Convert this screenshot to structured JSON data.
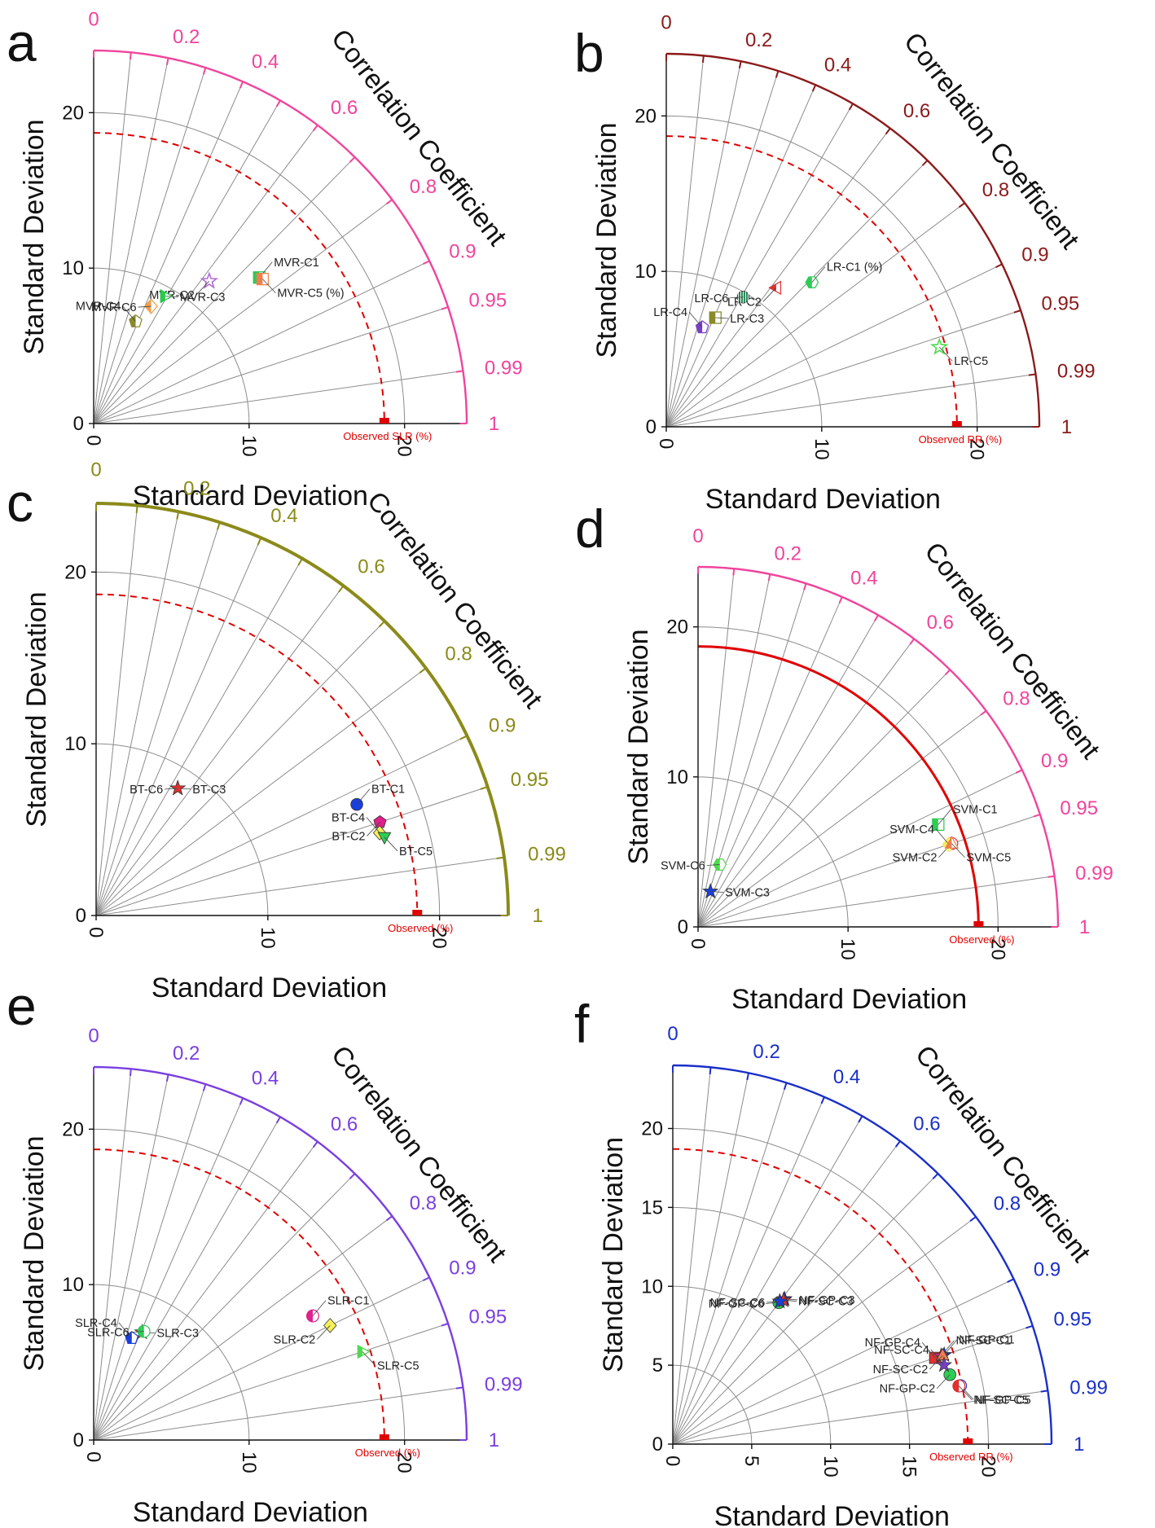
{
  "common": {
    "xlabel": "Standard Deviation",
    "ylabel": "Standard Deviation",
    "corr_label": "Correlation Coefficient",
    "sd_ticks": [
      "0",
      "10",
      "20"
    ],
    "corr_ticks": [
      "0",
      "0.2",
      "0.4",
      "0.6",
      "0.8",
      "0.9",
      "0.95",
      "0.99",
      "1"
    ],
    "observed_color": "#e00000"
  },
  "chart_data": [
    {
      "panel": "a",
      "type": "scatter",
      "chart_kind": "taylor-diagram",
      "xlabel": "Standard Deviation",
      "ylabel": "Standard Deviation",
      "corr_label": "Correlation Coefficient",
      "sd_range": [
        0,
        24
      ],
      "sd_ticks": [
        0,
        10,
        20
      ],
      "corr_ticks": [
        0,
        0.2,
        0.4,
        0.6,
        0.8,
        0.9,
        0.95,
        0.99,
        1
      ],
      "accent_color": "#f0449c",
      "observed": {
        "label": "Observed SLR (%)",
        "sd": 18.7
      },
      "points": [
        {
          "name": "MVR-C1",
          "sd": 14.2,
          "corr": 0.75,
          "color": "#2ecc55",
          "shape": "square-half"
        },
        {
          "name": "MVR-C2",
          "sd": 11.8,
          "corr": 0.63,
          "color": "#b36bd6",
          "shape": "star-open"
        },
        {
          "name": "MVR-C3",
          "sd": 9.4,
          "corr": 0.49,
          "color": "#27cc4b",
          "shape": "triangle-right-half"
        },
        {
          "name": "MVR-C4",
          "sd": 7.1,
          "corr": 0.38,
          "color": "#8a8a2a",
          "shape": "pentagon-half"
        },
        {
          "name": "MVR-C5 (%)",
          "sd": 14.3,
          "corr": 0.76,
          "color": "#f07f50",
          "shape": "square-half"
        },
        {
          "name": "MVR-C6",
          "sd": 8.4,
          "corr": 0.44,
          "color": "#f0a050",
          "shape": "diamond-half"
        }
      ]
    },
    {
      "panel": "b",
      "type": "scatter",
      "chart_kind": "taylor-diagram",
      "xlabel": "Standard Deviation",
      "ylabel": "Standard Deviation",
      "corr_label": "Correlation Coefficient",
      "sd_range": [
        0,
        24
      ],
      "sd_ticks": [
        0,
        10,
        20
      ],
      "corr_ticks": [
        0,
        0.2,
        0.4,
        0.6,
        0.8,
        0.9,
        0.95,
        0.99,
        1
      ],
      "accent_color": "#8b1a1a",
      "observed": {
        "label": "Observed RR (%)",
        "sd": 18.7
      },
      "points": [
        {
          "name": "LR-C1 (%)",
          "sd": 13.2,
          "corr": 0.71,
          "color": "#2ecc55",
          "shape": "hexagon-half"
        },
        {
          "name": "LR-C2",
          "sd": 11.4,
          "corr": 0.62,
          "color": "#e03030",
          "shape": "triangle-left-half"
        },
        {
          "name": "LR-C3",
          "sd": 7.7,
          "corr": 0.41,
          "color": "#8a8a2a",
          "shape": "square-half"
        },
        {
          "name": "LR-C4",
          "sd": 6.8,
          "corr": 0.34,
          "color": "#7a3fc8",
          "shape": "pentagon-half"
        },
        {
          "name": "LR-C5",
          "sd": 18.3,
          "corr": 0.96,
          "color": "#4ddb4d",
          "shape": "star-open"
        },
        {
          "name": "LR-C6",
          "sd": 9.7,
          "corr": 0.51,
          "color": "#2b8a5a",
          "shape": "circle-striped"
        }
      ]
    },
    {
      "panel": "c",
      "type": "scatter",
      "chart_kind": "taylor-diagram",
      "xlabel": "Standard Deviation",
      "ylabel": "Standard Deviation",
      "corr_label": "Correlation Coefficient",
      "sd_range": [
        0,
        24
      ],
      "sd_ticks": [
        0,
        10,
        20
      ],
      "corr_ticks": [
        0,
        0.2,
        0.4,
        0.6,
        0.8,
        0.9,
        0.95,
        0.99,
        1
      ],
      "accent_color": "#8b8a1a",
      "observed": {
        "label": "Observed (%)",
        "sd": 18.7
      },
      "points": [
        {
          "name": "BT-C1",
          "sd": 16.5,
          "corr": 0.92,
          "color": "#1a3fe0",
          "shape": "circle"
        },
        {
          "name": "BT-C2",
          "sd": 17.4,
          "corr": 0.95,
          "color": "#e0208c",
          "shape": "pentagon"
        },
        {
          "name": "BT-C3",
          "sd": 8.8,
          "corr": 0.54,
          "color": "#111111",
          "shape": "star"
        },
        {
          "name": "BT-C4",
          "sd": 17.2,
          "corr": 0.96,
          "color": "#f5ef5a",
          "shape": "diamond"
        },
        {
          "name": "BT-C5",
          "sd": 17.4,
          "corr": 0.965,
          "color": "#2ecc55",
          "shape": "triangle-down"
        },
        {
          "name": "BT-C6",
          "sd": 8.8,
          "corr": 0.54,
          "color": "#e03030",
          "shape": "star"
        }
      ]
    },
    {
      "panel": "d",
      "type": "scatter",
      "chart_kind": "taylor-diagram",
      "xlabel": "Standard Deviation",
      "ylabel": "Standard Deviation",
      "corr_label": "Correlation Coefficient",
      "sd_range": [
        0,
        24
      ],
      "sd_ticks": [
        0,
        10,
        20
      ],
      "corr_ticks": [
        0,
        0.2,
        0.4,
        0.6,
        0.8,
        0.9,
        0.95,
        0.99,
        1
      ],
      "accent_color": "#f0449c",
      "observed": {
        "label": "Observed (%)",
        "sd": 18.7
      },
      "points": [
        {
          "name": "SVM-C1",
          "sd": 17.4,
          "corr": 0.92,
          "color": "#2ecc55",
          "shape": "square-half"
        },
        {
          "name": "SVM-C2",
          "sd": 17.8,
          "corr": 0.95,
          "color": "#e03030",
          "shape": "circle-half"
        },
        {
          "name": "SVM-C3",
          "sd": 2.5,
          "corr": 0.33,
          "color": "#1a3fe0",
          "shape": "star"
        },
        {
          "name": "SVM-C4",
          "sd": 17.6,
          "corr": 0.95,
          "color": "#f5ef5a",
          "shape": "diamond-half"
        },
        {
          "name": "SVM-C5",
          "sd": 17.8,
          "corr": 0.95,
          "color": "#f07f50",
          "shape": "triangle-half"
        },
        {
          "name": "SVM-C6",
          "sd": 4.4,
          "corr": 0.33,
          "color": "#4ddb4d",
          "shape": "hexagon-half"
        }
      ]
    },
    {
      "panel": "e",
      "type": "scatter",
      "chart_kind": "taylor-diagram",
      "xlabel": "Standard Deviation",
      "ylabel": "Standard Deviation",
      "corr_label": "Correlation Coefficient",
      "sd_range": [
        0,
        24
      ],
      "sd_ticks": [
        0,
        10,
        20
      ],
      "corr_ticks": [
        0,
        0.2,
        0.4,
        0.6,
        0.8,
        0.9,
        0.95,
        0.99,
        1
      ],
      "accent_color": "#7a3fe0",
      "observed": {
        "label": "Observed (%)",
        "sd": 18.7
      },
      "points": [
        {
          "name": "SLR-C1",
          "sd": 16.2,
          "corr": 0.87,
          "color": "#e0208c",
          "shape": "circle-half"
        },
        {
          "name": "SLR-C2",
          "sd": 16.9,
          "corr": 0.9,
          "color": "#f5ef5a",
          "shape": "diamond"
        },
        {
          "name": "SLR-C3",
          "sd": 7.6,
          "corr": 0.41,
          "color": "#e03030",
          "shape": "star"
        },
        {
          "name": "SLR-C4",
          "sd": 7.0,
          "corr": 0.35,
          "color": "#1a3fe0",
          "shape": "pentagon-half"
        },
        {
          "name": "SLR-C5",
          "sd": 18.2,
          "corr": 0.95,
          "color": "#4ddb4d",
          "shape": "triangle-right-half"
        },
        {
          "name": "SLR-C6",
          "sd": 7.7,
          "corr": 0.42,
          "color": "#2ecc55",
          "shape": "circle-half"
        }
      ]
    },
    {
      "panel": "f",
      "type": "scatter",
      "chart_kind": "taylor-diagram",
      "xlabel": "Standard Deviation",
      "ylabel": "Standard Deviation",
      "corr_label": "Correlation Coefficient",
      "sd_range": [
        0,
        24
      ],
      "sd_ticks": [
        0,
        5,
        10,
        15,
        20
      ],
      "corr_ticks": [
        0,
        0.2,
        0.4,
        0.6,
        0.8,
        0.9,
        0.95,
        0.99,
        1
      ],
      "accent_color": "#1a2fc8",
      "observed": {
        "label": "Observed RR (%)",
        "sd": 18.7
      },
      "points": [
        {
          "name": "NF-GP-C1",
          "sd": 18.1,
          "corr": 0.95,
          "color": "#1a3fe0",
          "shape": "star"
        },
        {
          "name": "NF-GP-C2",
          "sd": 18.1,
          "corr": 0.97,
          "color": "#2ecc55",
          "shape": "circle"
        },
        {
          "name": "NF-GP-C3",
          "sd": 11.6,
          "corr": 0.61,
          "color": "#1a2fc8",
          "shape": "star"
        },
        {
          "name": "NF-GP-C4",
          "sd": 17.5,
          "corr": 0.95,
          "color": "#e03030",
          "shape": "square"
        },
        {
          "name": "NF-GP-C5",
          "sd": 18.6,
          "corr": 0.98,
          "color": "#1a3fe0",
          "shape": "circle-half"
        },
        {
          "name": "NF-GP-C6",
          "sd": 11.2,
          "corr": 0.6,
          "color": "#2ecc55",
          "shape": "circle"
        },
        {
          "name": "NF-SC-C1",
          "sd": 17.9,
          "corr": 0.95,
          "color": "#e0208c",
          "shape": "star"
        },
        {
          "name": "NF-SC-C2",
          "sd": 18.0,
          "corr": 0.95,
          "color": "#f07f50",
          "shape": "triangle"
        },
        {
          "name": "NF-SC-C3",
          "sd": 11.5,
          "corr": 0.61,
          "color": "#e03030",
          "shape": "star"
        },
        {
          "name": "NF-SC-C4",
          "sd": 17.9,
          "corr": 0.96,
          "color": "#7a3fc8",
          "shape": "star"
        },
        {
          "name": "NF-SC-C5",
          "sd": 18.5,
          "corr": 0.98,
          "color": "#e03030",
          "shape": "circle-half"
        },
        {
          "name": "NF-SC-C6",
          "sd": 11.3,
          "corr": 0.6,
          "color": "#1a3fe0",
          "shape": "star"
        }
      ]
    }
  ]
}
